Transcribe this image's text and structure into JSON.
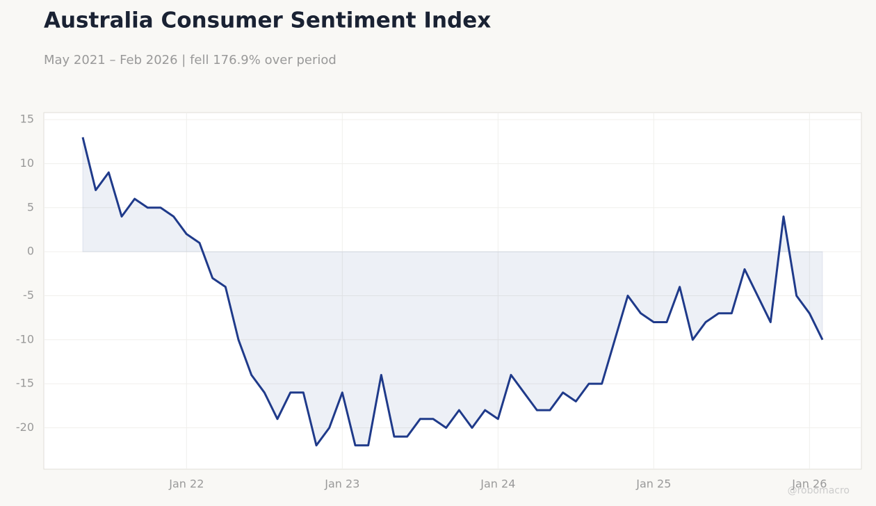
{
  "chart_data": {
    "type": "line",
    "title": "Australia Consumer Sentiment Index",
    "subtitle": "May 2021 – Feb 2026 | fell 176.9% over period",
    "watermark": "@robomacro",
    "x": [
      "2021-05",
      "2021-06",
      "2021-07",
      "2021-08",
      "2021-09",
      "2021-10",
      "2021-11",
      "2021-12",
      "2022-01",
      "2022-02",
      "2022-03",
      "2022-04",
      "2022-05",
      "2022-06",
      "2022-07",
      "2022-08",
      "2022-09",
      "2022-10",
      "2022-11",
      "2022-12",
      "2023-01",
      "2023-02",
      "2023-03",
      "2023-04",
      "2023-05",
      "2023-06",
      "2023-07",
      "2023-08",
      "2023-09",
      "2023-10",
      "2023-11",
      "2023-12",
      "2024-01",
      "2024-02",
      "2024-03",
      "2024-04",
      "2024-05",
      "2024-06",
      "2024-07",
      "2024-08",
      "2024-09",
      "2024-10",
      "2024-11",
      "2024-12",
      "2025-01",
      "2025-02",
      "2025-03",
      "2025-04",
      "2025-05",
      "2025-06",
      "2025-07",
      "2025-08",
      "2025-09",
      "2025-10",
      "2025-11",
      "2025-12",
      "2026-01",
      "2026-02"
    ],
    "series": [
      {
        "name": "Consumer Sentiment",
        "color": "#1f3a8a",
        "values": [
          13,
          7,
          9,
          4,
          6,
          5,
          5,
          4,
          2,
          1,
          -3,
          -4,
          -10,
          -14,
          -16,
          -19,
          -16,
          -16,
          -22,
          -20,
          -16,
          -22,
          -22,
          -14,
          -21,
          -21,
          -19,
          -19,
          -20,
          -18,
          -20,
          -18,
          -19,
          -14,
          -16,
          -18,
          -18,
          -16,
          -17,
          -15,
          -15,
          -10,
          -5,
          -7,
          -8,
          -8,
          -4,
          -10,
          -8,
          -7,
          -7,
          -2,
          -5,
          -8,
          4,
          -5,
          -7,
          -10
        ]
      }
    ],
    "xlim": [
      "2021-02",
      "2026-05"
    ],
    "xticks": [
      {
        "value": "2022-01",
        "label": "Jan 22"
      },
      {
        "value": "2023-01",
        "label": "Jan 23"
      },
      {
        "value": "2024-01",
        "label": "Jan 24"
      },
      {
        "value": "2025-01",
        "label": "Jan 25"
      },
      {
        "value": "2026-01",
        "label": "Jan 26"
      }
    ],
    "ylim": [
      -24.7,
      15.8
    ],
    "yticks": [
      -20,
      -15,
      -10,
      -5,
      0,
      5,
      10,
      15
    ],
    "grid": true,
    "area_fill": true
  }
}
